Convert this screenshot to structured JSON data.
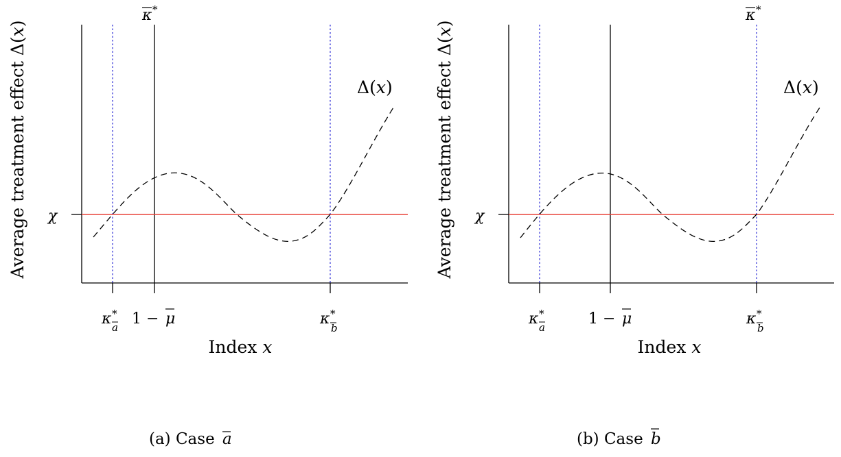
{
  "figure": {
    "panels": [
      {
        "caption": {
          "prefix": "(a) Case ",
          "letter": "a"
        },
        "ylabel": {
          "text": "Average treatment effect ",
          "sym": "Δ",
          "x": "x",
          "open": "(",
          "close": ")"
        },
        "xlabel": {
          "text": "Index ",
          "var": "x"
        },
        "chi_label": "χ",
        "kbar_label": {
          "kappa": "κ",
          "star": "*"
        },
        "ticks": {
          "ka": {
            "kappa": "κ",
            "star": "*",
            "sub": "a"
          },
          "mu": {
            "pre": "1 − ",
            "mu": "μ"
          },
          "kb": {
            "kappa": "κ",
            "star": "*",
            "sub": "b"
          }
        },
        "curve_label": {
          "sym": "Δ",
          "open": "(",
          "x": "x",
          "close": ")"
        }
      },
      {
        "caption": {
          "prefix": "(b) Case ",
          "letter": "b"
        },
        "ylabel": {
          "text": "Average treatment effect ",
          "sym": "Δ",
          "x": "x",
          "open": "(",
          "close": ")"
        },
        "xlabel": {
          "text": "Index ",
          "var": "x"
        },
        "chi_label": "χ",
        "kbar_label": {
          "kappa": "κ",
          "star": "*"
        },
        "ticks": {
          "ka": {
            "kappa": "κ",
            "star": "*",
            "sub": "a"
          },
          "mu": {
            "pre": "1 − ",
            "mu": "μ"
          },
          "kb": {
            "kappa": "κ",
            "star": "*",
            "sub": "b"
          }
        },
        "curve_label": {
          "sym": "Δ",
          "open": "(",
          "x": "x",
          "close": ")"
        }
      }
    ]
  },
  "colors": {
    "threshold_line": "#e8433a",
    "crossing_line": "#2b2bd6",
    "curve": "#000000",
    "axis": "#000000"
  }
}
